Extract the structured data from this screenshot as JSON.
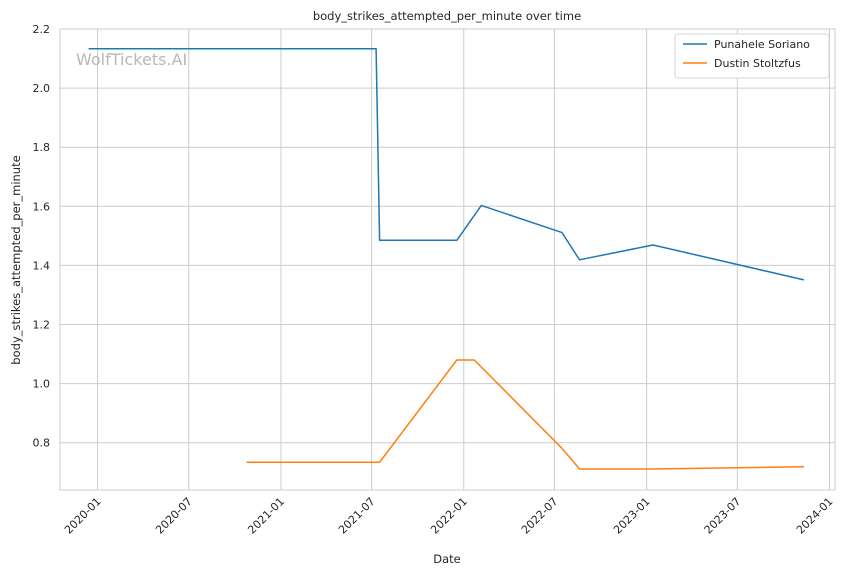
{
  "watermark": "WolfTickets.AI",
  "chart_data": {
    "type": "line",
    "title": "body_strikes_attempted_per_minute over time",
    "xlabel": "Date",
    "ylabel": "body_strikes_attempted_per_minute",
    "x_axis_type": "date",
    "xlim": [
      "2019-10-18",
      "2024-01-12"
    ],
    "ylim": [
      0.64,
      2.2
    ],
    "x_ticks": [
      "2020-01-01",
      "2020-07-01",
      "2021-01-01",
      "2021-07-01",
      "2022-01-01",
      "2022-07-01",
      "2023-01-01",
      "2023-07-01",
      "2024-01-01"
    ],
    "x_tick_labels": [
      "2020-01",
      "2020-07",
      "2021-01",
      "2021-07",
      "2022-01",
      "2022-07",
      "2023-01",
      "2023-07",
      "2024-01"
    ],
    "y_ticks": [
      0.8,
      1.0,
      1.2,
      1.4,
      1.6,
      1.8,
      2.0,
      2.2
    ],
    "y_tick_labels": [
      "0.8",
      "1.0",
      "1.2",
      "1.4",
      "1.6",
      "1.8",
      "2.0",
      "2.2"
    ],
    "grid": true,
    "legend_position": "top-right",
    "series": [
      {
        "name": "Punahele Soriano",
        "color": "#1f77b4",
        "points": [
          {
            "x": "2019-12-14",
            "y": 2.133
          },
          {
            "x": "2021-07-10",
            "y": 2.133
          },
          {
            "x": "2021-07-17",
            "y": 1.485
          },
          {
            "x": "2021-12-18",
            "y": 1.485
          },
          {
            "x": "2022-02-05",
            "y": 1.603
          },
          {
            "x": "2022-07-16",
            "y": 1.511
          },
          {
            "x": "2022-08-20",
            "y": 1.419
          },
          {
            "x": "2023-01-14",
            "y": 1.469
          },
          {
            "x": "2023-11-11",
            "y": 1.351
          }
        ]
      },
      {
        "name": "Dustin Stoltzfus",
        "color": "#ff7f0e",
        "points": [
          {
            "x": "2020-10-24",
            "y": 0.734
          },
          {
            "x": "2021-07-17",
            "y": 0.734
          },
          {
            "x": "2021-12-18",
            "y": 1.08
          },
          {
            "x": "2022-01-22",
            "y": 1.08
          },
          {
            "x": "2022-07-16",
            "y": 0.781
          },
          {
            "x": "2022-08-20",
            "y": 0.711
          },
          {
            "x": "2023-01-14",
            "y": 0.711
          },
          {
            "x": "2023-11-11",
            "y": 0.719
          }
        ]
      }
    ]
  }
}
